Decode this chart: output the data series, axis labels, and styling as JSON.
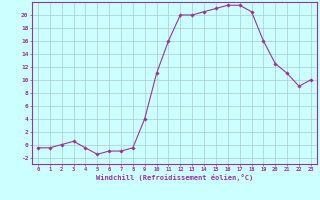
{
  "x": [
    0,
    1,
    2,
    3,
    4,
    5,
    6,
    7,
    8,
    9,
    10,
    11,
    12,
    13,
    14,
    15,
    16,
    17,
    18,
    19,
    20,
    21,
    22,
    23
  ],
  "y": [
    -0.5,
    -0.5,
    0,
    0.5,
    -0.5,
    -1.5,
    -1,
    -1,
    -0.5,
    4,
    11,
    16,
    20,
    20,
    20.5,
    21,
    21.5,
    21.5,
    20.5,
    16,
    12.5,
    11,
    9,
    10
  ],
  "line_color": "#993399",
  "marker_color": "#993399",
  "bg_color": "#ccffff",
  "grid_color": "#aacccc",
  "xlabel": "Windchill (Refroidissement éolien,°C)",
  "xlabel_color": "#993399",
  "tick_color": "#993399",
  "ylim": [
    -3,
    22
  ],
  "xlim": [
    -0.5,
    23.5
  ],
  "yticks": [
    -2,
    0,
    2,
    4,
    6,
    8,
    10,
    12,
    14,
    16,
    18,
    20
  ],
  "xticks": [
    0,
    1,
    2,
    3,
    4,
    5,
    6,
    7,
    8,
    9,
    10,
    11,
    12,
    13,
    14,
    15,
    16,
    17,
    18,
    19,
    20,
    21,
    22,
    23
  ],
  "xtick_labels": [
    "0",
    "1",
    "2",
    "3",
    "4",
    "5",
    "6",
    "7",
    "8",
    "9",
    "10",
    "11",
    "12",
    "13",
    "14",
    "15",
    "16",
    "17",
    "18",
    "19",
    "20",
    "21",
    "22",
    "23"
  ],
  "ytick_labels": [
    "-2",
    "0",
    "2",
    "4",
    "6",
    "8",
    "10",
    "12",
    "14",
    "16",
    "18",
    "20"
  ]
}
